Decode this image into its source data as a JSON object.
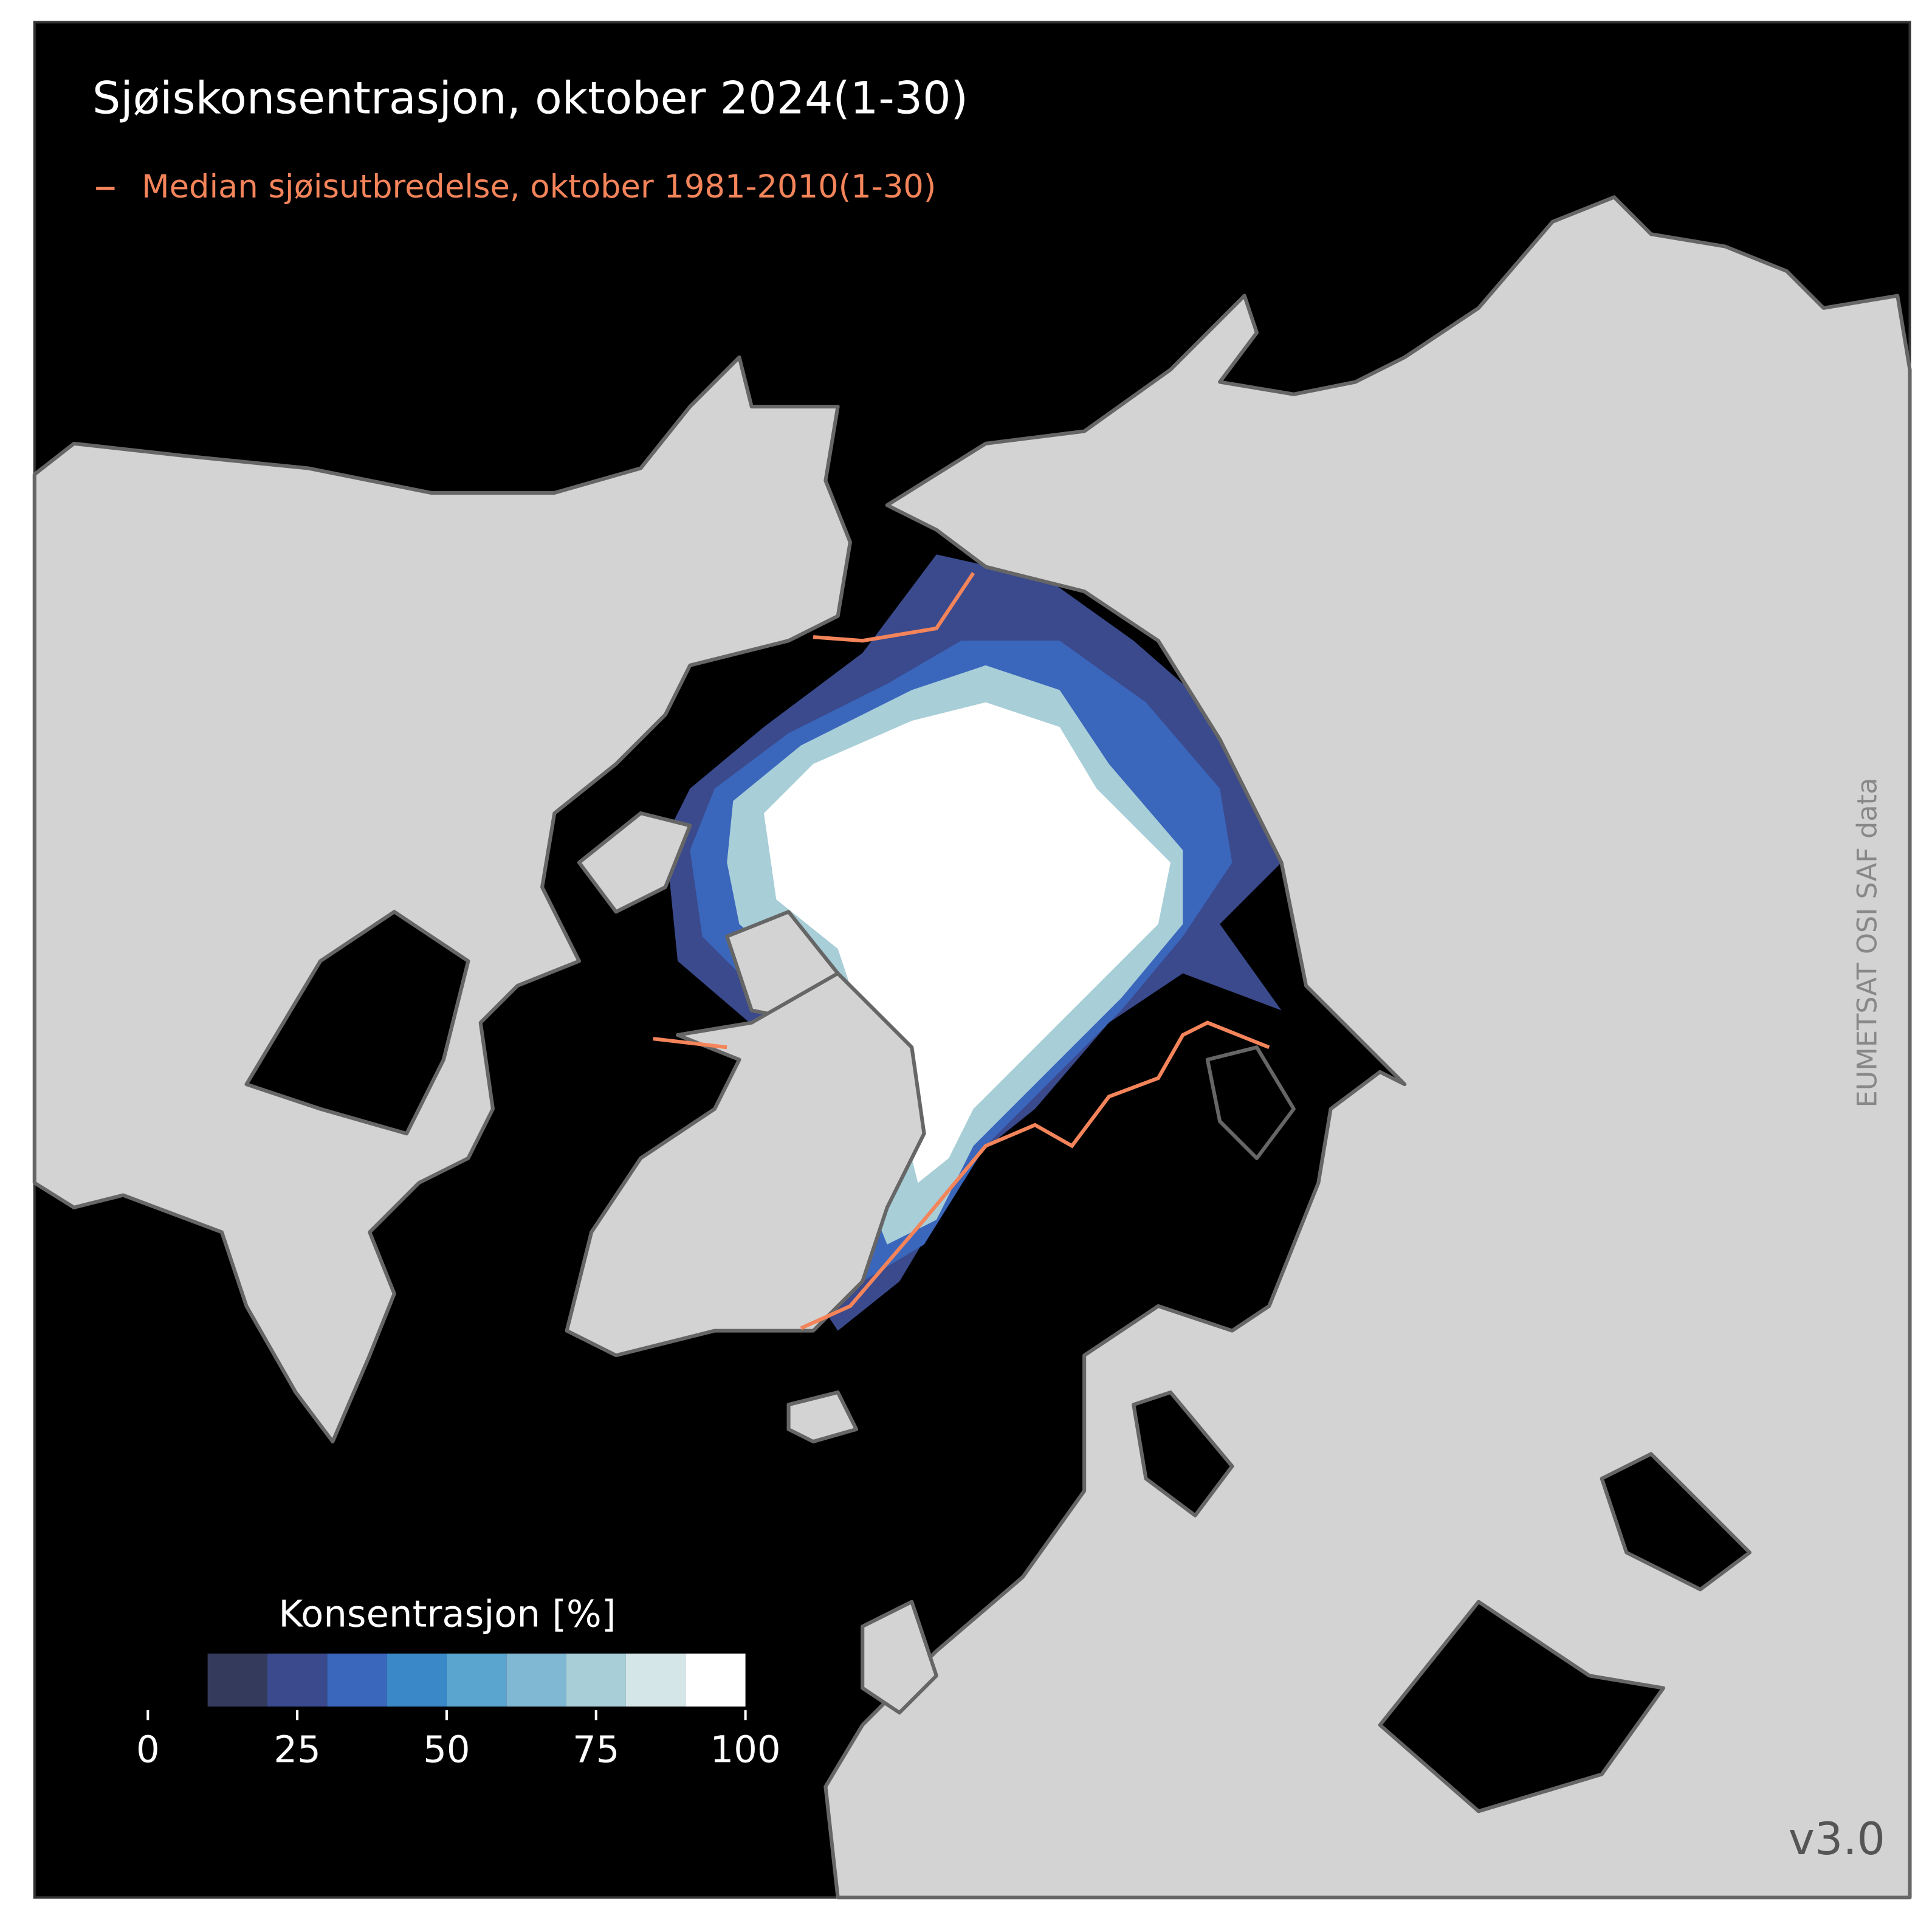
{
  "title": "Sjøiskonsentrasjon, oktober 2024(1-30)",
  "legend": {
    "label": "Median sjøisutbredelse, oktober 1981-2010(1-30)",
    "color": "#f4845a"
  },
  "colorbar": {
    "label": "Konsentrasjon [%]",
    "lim": [
      0,
      100
    ],
    "ticks": [
      0,
      25,
      50,
      75,
      100
    ],
    "bins": [
      10,
      20,
      30,
      40,
      50,
      60,
      70,
      80,
      90,
      100
    ],
    "colors": [
      "#333a5c",
      "#3a4a8c",
      "#3a66bc",
      "#3a88c8",
      "#5aa4d0",
      "#80b8d4",
      "#a8ced8",
      "#d4e6e8",
      "#ffffff"
    ]
  },
  "credit": "EUMETSAT OSI SAF data",
  "version": "v3.0"
}
